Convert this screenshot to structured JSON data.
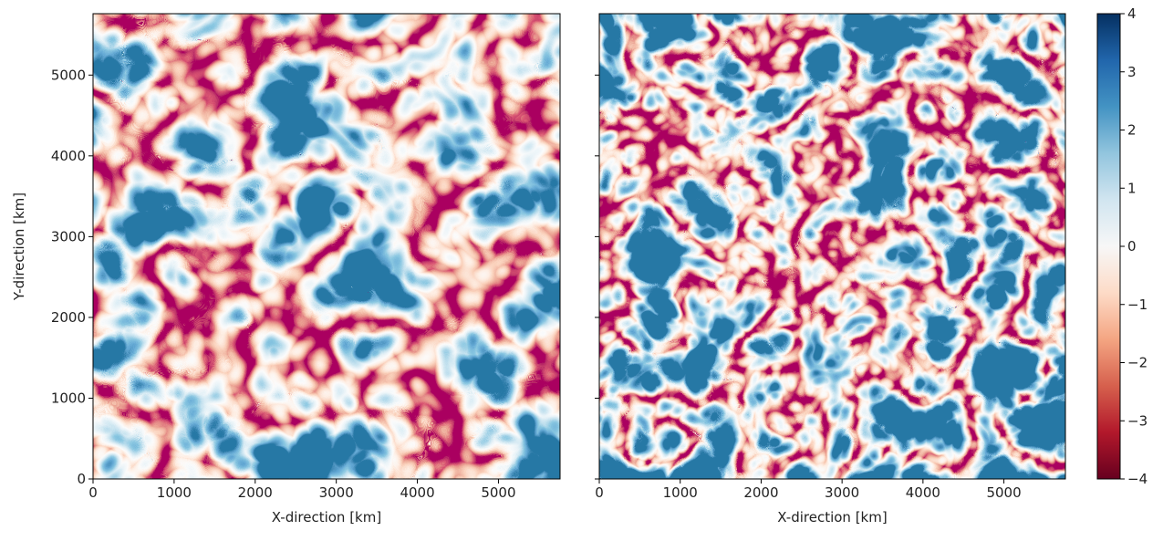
{
  "chart_data": [
    {
      "type": "heatmap",
      "xlabel": "X-direction [km]",
      "ylabel": "Y-direction [km]",
      "xlim": [
        0,
        5760
      ],
      "ylim": [
        0,
        5760
      ],
      "xticks": [
        0,
        1000,
        2000,
        3000,
        4000,
        5000
      ],
      "yticks": [
        0,
        1000,
        2000,
        3000,
        4000,
        5000
      ],
      "ytick_labels": true,
      "cmap": "RdBu"
    },
    {
      "type": "heatmap",
      "xlabel": "X-direction [km]",
      "xlim": [
        0,
        5760
      ],
      "ylim": [
        0,
        5760
      ],
      "xticks": [
        0,
        1000,
        2000,
        3000,
        4000,
        5000
      ],
      "yticks": [
        0,
        1000,
        2000,
        3000,
        4000,
        5000
      ],
      "ytick_labels": false,
      "cmap": "RdBu",
      "colorbar": {
        "clim": [
          -4,
          4
        ],
        "ticks": [
          4,
          3,
          2,
          1,
          0,
          {
            "value": -1,
            "label": "−1"
          },
          {
            "value": -2,
            "label": "−2"
          },
          {
            "value": -3,
            "label": "−3"
          },
          {
            "value": -4,
            "label": "−4"
          }
        ]
      }
    }
  ]
}
